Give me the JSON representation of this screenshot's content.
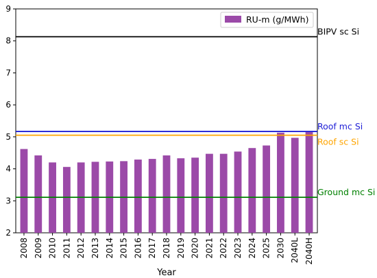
{
  "chart_data": {
    "type": "bar",
    "xlabel": "Year",
    "ylabel": "",
    "ylim": [
      2,
      9
    ],
    "yticks": [
      2,
      3,
      4,
      5,
      6,
      7,
      8,
      9
    ],
    "categories": [
      "2008",
      "2009",
      "2010",
      "2011",
      "2012",
      "2013",
      "2014",
      "2015",
      "2016",
      "2017",
      "2018",
      "2019",
      "2020",
      "2021",
      "2022",
      "2023",
      "2024",
      "2025",
      "2030",
      "2040L",
      "2040H"
    ],
    "series": [
      {
        "name": "RU-m (g/MWh)",
        "color": "#9b4aa8",
        "values": [
          4.62,
          4.42,
          4.2,
          4.06,
          4.2,
          4.22,
          4.23,
          4.24,
          4.29,
          4.31,
          4.42,
          4.33,
          4.35,
          4.47,
          4.47,
          4.54,
          4.65,
          4.73,
          5.13,
          4.97,
          5.15
        ]
      }
    ],
    "reference_lines": [
      {
        "label": "BIPV sc Si",
        "value": 8.13,
        "color": "#000000"
      },
      {
        "label": "Roof mc Si",
        "value": 5.17,
        "color": "#1f1fd6"
      },
      {
        "label": "Roof sc Si",
        "value": 5.05,
        "color": "#ffa500"
      },
      {
        "label": "Ground mc Si",
        "value": 3.11,
        "color": "#008000"
      }
    ],
    "legend_position": "top-right",
    "grid": false
  }
}
